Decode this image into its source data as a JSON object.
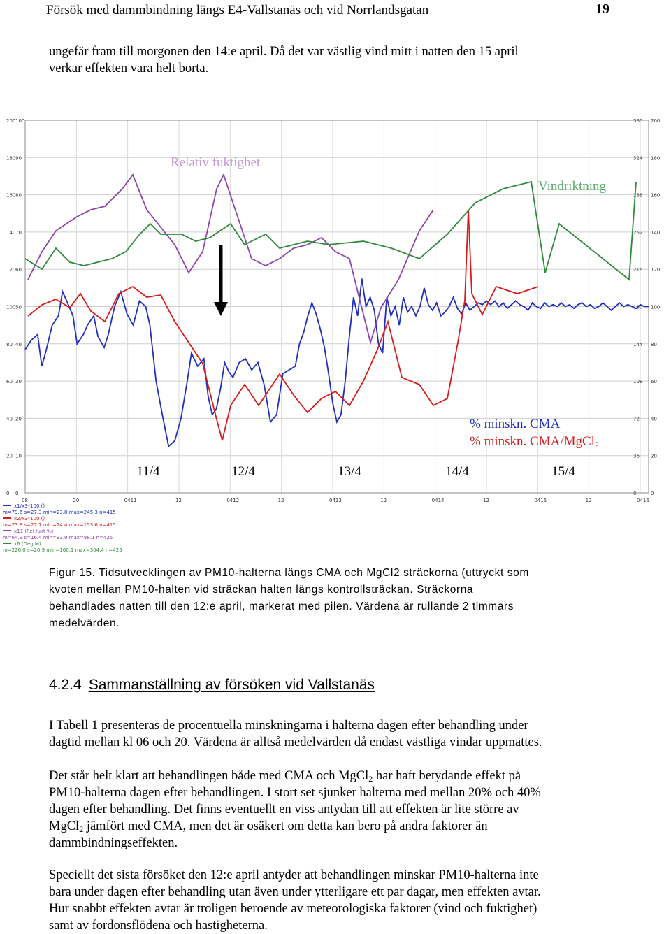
{
  "header": {
    "title": "Försök med dammbindning längs E4-Vallstanäs och vid Norrlandsgatan",
    "page_number": "19"
  },
  "intro": [
    "ungefär fram till morgonen den 14:e april. Då det var västlig vind mitt i natten den 15 april",
    "verkar effekten vara helt borta."
  ],
  "chart_data": {
    "type": "line",
    "x_start_label": "08",
    "day_labels": [
      "11/4",
      "12/4",
      "13/4",
      "14/4",
      "15/4"
    ],
    "x_tick_labels": [
      "08",
      "20",
      "0411",
      "12",
      "0412",
      "12",
      "0413",
      "12",
      "0414",
      "12",
      "0415",
      "12",
      "0416"
    ],
    "left_axis_outer": [
      "200",
      "180",
      "160",
      "140",
      "120",
      "100",
      "80",
      "60",
      "40",
      "20",
      "0"
    ],
    "left_axis_inner": [
      "100",
      "90",
      "80",
      "70",
      "60",
      "50",
      "40",
      "30",
      "20",
      "10",
      "0"
    ],
    "right_axis_outer": [
      "380",
      "324",
      "288",
      "252",
      "216",
      "180",
      "144",
      "108",
      "72",
      "36",
      "0"
    ],
    "right_axis_inner": [
      "200",
      "180",
      "160",
      "140",
      "120",
      "100",
      "80",
      "60",
      "40",
      "20",
      "0"
    ],
    "ylim": [
      0,
      200
    ],
    "annotations": {
      "humidity": "Relativ fuktighet",
      "wind": "Vindriktning",
      "arrow_note": "treatment"
    },
    "legend": [
      {
        "label": "% minskn. CMA",
        "color": "#1f2fbf"
      },
      {
        "label": "% minskn. CMA/MgCl",
        "sub": "2",
        "color": "#1f2fbf"
      }
    ],
    "stats_legend": [
      {
        "name": "x1/x3*100 ()",
        "stats": "m=79.6 s=27.3 min=23.8 max=245.3 n=415",
        "color": "#1f2fbf"
      },
      {
        "name": "x2/x3*100 ()",
        "stats": "m=73.8 s=27.1 min=24.4 max=153.6 n=415",
        "color": "#d81b1b"
      },
      {
        "name": "x11 (Rel fukt %)",
        "stats": "m=64.9 s=16.4 min=33.9 max=88.1 n=425",
        "color": "#8e44ad"
      },
      {
        "name": "x6 (Deg.M)",
        "stats": "m=226.0 s=20.9 min=160.1 max=304.4 n=425",
        "color": "#2e8b3a"
      }
    ],
    "series": [
      {
        "name": "x1/x3*100 ()",
        "color": "#1f2fbf",
        "points": [
          [
            0,
            77
          ],
          [
            0.3,
            82
          ],
          [
            0.6,
            85
          ],
          [
            0.8,
            68
          ],
          [
            1.0,
            76
          ],
          [
            1.3,
            90
          ],
          [
            1.6,
            95
          ],
          [
            1.8,
            108
          ],
          [
            2.0,
            103
          ],
          [
            2.3,
            95
          ],
          [
            2.5,
            80
          ],
          [
            2.8,
            85
          ],
          [
            3.0,
            90
          ],
          [
            3.3,
            95
          ],
          [
            3.5,
            84
          ],
          [
            3.8,
            78
          ],
          [
            4.0,
            85
          ],
          [
            4.3,
            100
          ],
          [
            4.6,
            108
          ],
          [
            4.9,
            96
          ],
          [
            5.2,
            90
          ],
          [
            5.5,
            103
          ],
          [
            5.8,
            100
          ],
          [
            6.0,
            90
          ],
          [
            6.3,
            60
          ],
          [
            6.6,
            42
          ],
          [
            6.9,
            25
          ],
          [
            7.2,
            28
          ],
          [
            7.5,
            40
          ],
          [
            7.8,
            60
          ],
          [
            8.0,
            75
          ],
          [
            8.3,
            68
          ],
          [
            8.6,
            72
          ],
          [
            8.8,
            52
          ],
          [
            9.0,
            42
          ],
          [
            9.2,
            45
          ],
          [
            9.4,
            56
          ],
          [
            9.6,
            70
          ],
          [
            9.8,
            65
          ],
          [
            10.0,
            62
          ],
          [
            10.3,
            70
          ],
          [
            10.6,
            72
          ],
          [
            10.9,
            66
          ],
          [
            11.2,
            70
          ],
          [
            11.5,
            58
          ],
          [
            11.8,
            38
          ],
          [
            12.1,
            42
          ],
          [
            12.4,
            64
          ],
          [
            12.7,
            66
          ],
          [
            13.0,
            68
          ],
          [
            13.2,
            80
          ],
          [
            13.4,
            86
          ],
          [
            13.6,
            95
          ],
          [
            13.8,
            102
          ],
          [
            14.0,
            96
          ],
          [
            14.2,
            88
          ],
          [
            14.4,
            78
          ],
          [
            14.6,
            64
          ],
          [
            14.8,
            48
          ],
          [
            15.0,
            38
          ],
          [
            15.2,
            42
          ],
          [
            15.4,
            60
          ],
          [
            15.6,
            84
          ],
          [
            15.8,
            105
          ],
          [
            16.0,
            95
          ],
          [
            16.2,
            115
          ],
          [
            16.4,
            100
          ],
          [
            16.6,
            105
          ],
          [
            16.8,
            98
          ],
          [
            17.0,
            80
          ],
          [
            17.2,
            75
          ],
          [
            17.4,
            105
          ],
          [
            17.6,
            95
          ],
          [
            17.8,
            100
          ],
          [
            18.0,
            90
          ],
          [
            18.2,
            105
          ],
          [
            18.4,
            97
          ],
          [
            18.6,
            100
          ],
          [
            18.8,
            95
          ],
          [
            19.0,
            100
          ],
          [
            19.2,
            110
          ],
          [
            19.4,
            101
          ],
          [
            19.6,
            98
          ],
          [
            19.8,
            102
          ],
          [
            20.0,
            95
          ],
          [
            20.2,
            97
          ],
          [
            20.4,
            100
          ],
          [
            20.6,
            105
          ],
          [
            20.8,
            99
          ],
          [
            21.0,
            96
          ],
          [
            21.2,
            102
          ],
          [
            21.4,
            98
          ],
          [
            21.6,
            100
          ],
          [
            21.8,
            102
          ],
          [
            22.0,
            101
          ],
          [
            22.2,
            103
          ],
          [
            22.4,
            101
          ],
          [
            22.6,
            103
          ],
          [
            22.8,
            100
          ],
          [
            23.0,
            102
          ],
          [
            23.2,
            99
          ],
          [
            23.4,
            101
          ],
          [
            23.6,
            103
          ],
          [
            23.8,
            101
          ],
          [
            24.0,
            100
          ],
          [
            24.2,
            98
          ],
          [
            24.4,
            102
          ],
          [
            24.6,
            100
          ],
          [
            24.8,
            99
          ],
          [
            25.0,
            102
          ],
          [
            25.2,
            100
          ],
          [
            25.4,
            101
          ],
          [
            25.6,
            100
          ],
          [
            25.8,
            102
          ],
          [
            26.0,
            100
          ],
          [
            26.2,
            101
          ],
          [
            26.4,
            99
          ],
          [
            26.6,
            101
          ],
          [
            26.8,
            102
          ],
          [
            27.0,
            100
          ],
          [
            27.2,
            101
          ],
          [
            27.4,
            99
          ],
          [
            27.6,
            100
          ],
          [
            27.8,
            102
          ],
          [
            28.0,
            100
          ],
          [
            28.2,
            98
          ],
          [
            28.4,
            100
          ],
          [
            28.6,
            102
          ],
          [
            28.8,
            100
          ],
          [
            29.0,
            101
          ],
          [
            29.2,
            100
          ],
          [
            29.4,
            99
          ],
          [
            29.6,
            101
          ],
          [
            29.8,
            100
          ],
          [
            30.0,
            100
          ]
        ]
      }
    ]
  },
  "caption": [
    "Figur 15. Tidsutvecklingen av PM10-halterna längs CMA och MgCl2 sträckorna (uttryckt som",
    "kvoten mellan PM10-halten vid sträckan halten längs kontrollsträckan. Sträckorna",
    "behandlades natten till den 12:e april, markerat med pilen. Värdena är rullande 2 timmars",
    "medelvärden."
  ],
  "section": {
    "number": "4.2.4",
    "title": "Sammanställning av försöken vid Vallstanäs"
  },
  "paragraphs": [
    {
      "lines": [
        "I Tabell 1 presenteras de procentuella minskningarna i halterna dagen efter behandling under",
        "dagtid mellan kl 06 och 20. Värdena är alltså medelvärden då endast västliga vindar uppmättes."
      ]
    },
    {
      "lines": [
        "Det står helt klart att behandlingen både med CMA och MgCl",
        "PM10-halterna dagen efter behandlingen. I stort set sjunker halterna med mellan 20% och 40%",
        "dagen efter behandling. Det finns eventuellt en viss antydan till att effekten är lite större av",
        "MgCl",
        "dammbindningseffekten."
      ],
      "sub_2a": "2",
      "line1_tail": " har haft betydande effekt på",
      "sub_2b": "2",
      "line4_tail": " jämfört med CMA, men det är osäkert om detta kan bero på andra faktorer än"
    },
    {
      "lines": [
        "Speciellt det sista försöket den 12:e april antyder att behandlingen minskar PM10-halterna inte",
        "bara under dagen efter behandling utan även under ytterligare ett par dagar, men effekten avtar.",
        "Hur snabbt effekten avtar är troligen beroende av meteorologiska faktorer (vind och fuktighet)",
        "samt av fordonsflödena och hastigheterna."
      ]
    }
  ]
}
